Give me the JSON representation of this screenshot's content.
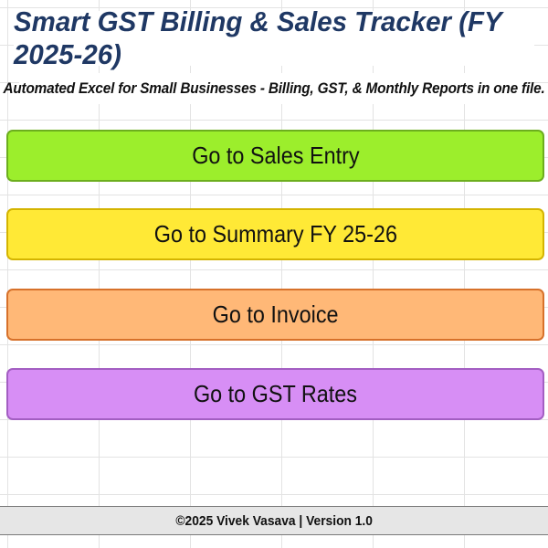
{
  "header": {
    "title": "Smart GST Billing & Sales Tracker (FY 2025-26)",
    "subtitle": "Automated Excel for Small Businesses - Billing, GST, & Monthly Reports in one file."
  },
  "buttons": {
    "sales_entry": "Go to Sales Entry",
    "summary": "Go to Summary FY 25-26",
    "invoice": "Go to Invoice",
    "gst_rates": "Go to GST Rates"
  },
  "colors": {
    "title": "#1f3864",
    "sales_entry": "#9cee2c",
    "summary": "#ffe936",
    "invoice": "#ffb877",
    "gst_rates": "#d78ef5",
    "footer": "#e6e6e6"
  },
  "footer": {
    "text": "©2025 Vivek Vasava | Version 1.0"
  }
}
